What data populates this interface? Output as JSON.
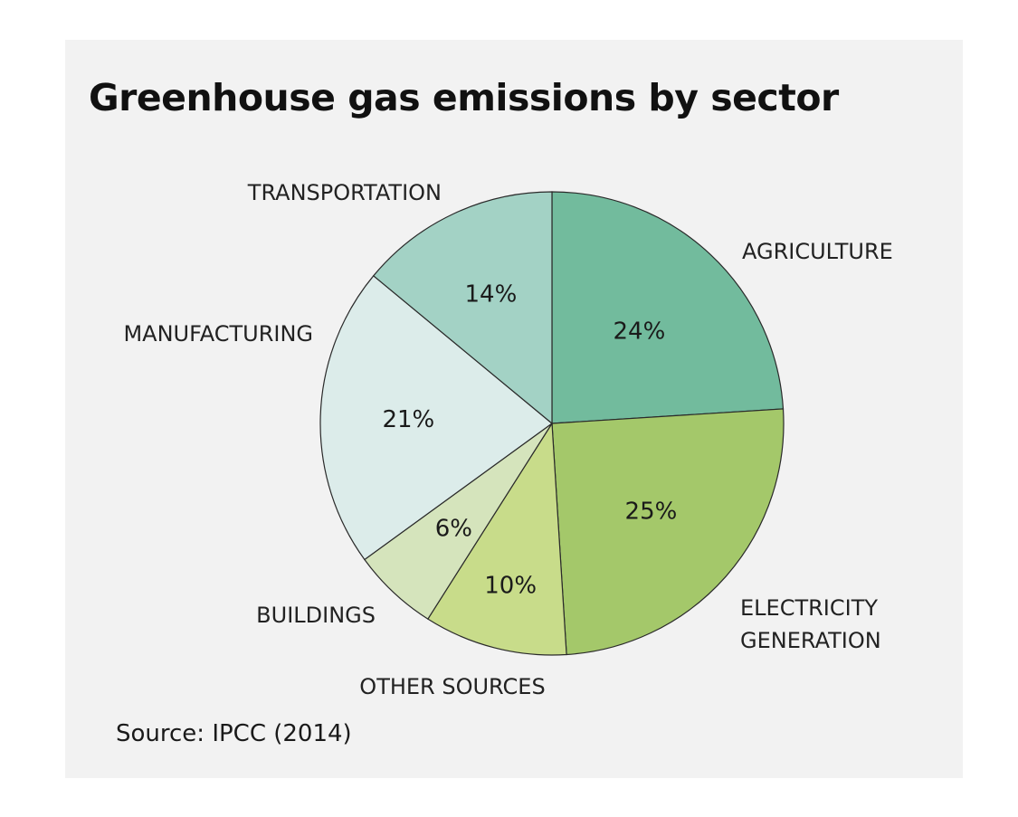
{
  "chart_data": {
    "type": "pie",
    "title": "Greenhouse gas emissions by sector",
    "source": "Source: IPCC (2014)",
    "slices": [
      {
        "label": "AGRICULTURE",
        "value": 24,
        "value_label": "24%",
        "color": "#72bb9d"
      },
      {
        "label": "ELECTRICITY GENERATION",
        "value": 25,
        "value_label": "25%",
        "color": "#a4c86a"
      },
      {
        "label": "OTHER SOURCES",
        "value": 10,
        "value_label": "10%",
        "color": "#c8dc8a"
      },
      {
        "label": "BUILDINGS",
        "value": 6,
        "value_label": "6%",
        "color": "#d5e4bc"
      },
      {
        "label": "MANUFACTURING",
        "value": 21,
        "value_label": "21%",
        "color": "#dcecea"
      },
      {
        "label": "TRANSPORTATION",
        "value": 14,
        "value_label": "14%",
        "color": "#a3d2c5"
      }
    ]
  }
}
